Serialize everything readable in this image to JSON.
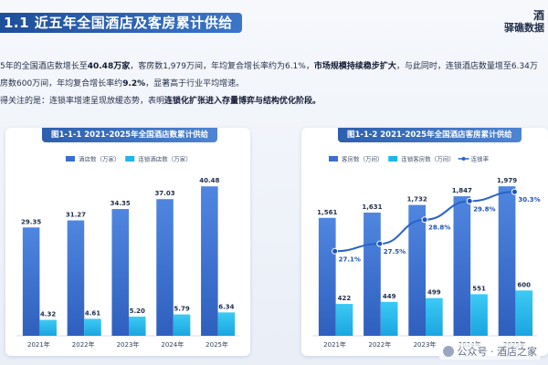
{
  "header": {
    "section_title": "1.1 近五年全国酒店及客房累计供给",
    "brand_line1": "酒",
    "brand_line2": "驿礁数据"
  },
  "body": {
    "line1_a": "5年的全国酒店数增长至",
    "line1_b": "40.48万家",
    "line1_c": "，客房数1,979万间，年均复合增长率约为6.1%，",
    "line1_d": "市场规模持续稳步扩大",
    "line1_e": "，与此同时，连锁酒店数量增至6.34万",
    "line2_a": "房数600万间，年均复合增长率约",
    "line2_b": "9.2%",
    "line2_c": "，显著高于行业平均增速。",
    "line3_a": "得关注的是：连锁率增速呈现放缓态势，表明",
    "line3_b": "连锁化扩张进入存量博弈与结构优化阶段。"
  },
  "chart_data": [
    {
      "type": "bar",
      "title": "图1-1-1 2021-2025年全国酒店数累计供给",
      "categories": [
        "2021年",
        "2022年",
        "2023年",
        "2024年",
        "2025年"
      ],
      "series": [
        {
          "name": "酒店数（万家）",
          "values": [
            29.35,
            31.27,
            34.35,
            37.03,
            40.48
          ],
          "labels": [
            "29.35",
            "31.27",
            "34.35",
            "37.03",
            "40.48"
          ]
        },
        {
          "name": "连锁酒店数（万家）",
          "values": [
            4.32,
            4.61,
            5.2,
            5.79,
            6.34
          ],
          "labels": [
            "4.32",
            "4.61",
            "5.20",
            "5.79",
            "6.34"
          ]
        }
      ],
      "ylim": [
        0,
        44
      ],
      "legend": "top",
      "colors": [
        "#3a6fd0",
        "#1fb6ea"
      ]
    },
    {
      "type": "bar",
      "title": "图1-1-2 2021-2025年全国酒店客房累计供给",
      "categories": [
        "2021年",
        "2022年",
        "2023年",
        "2024年",
        "2025年"
      ],
      "series": [
        {
          "name": "客房数（万间）",
          "values": [
            1561,
            1631,
            1732,
            1847,
            1979
          ],
          "labels": [
            "1,561",
            "1,631",
            "1,732",
            "1,847",
            "1,979"
          ]
        },
        {
          "name": "连锁客房数（万间）",
          "values": [
            422,
            449,
            499,
            551,
            600
          ],
          "labels": [
            "422",
            "449",
            "499",
            "551",
            "600"
          ]
        },
        {
          "name": "连锁率",
          "type": "line",
          "values": [
            27.1,
            27.5,
            28.8,
            29.8,
            30.3
          ],
          "labels": [
            "27.1%",
            "27.5%",
            "28.8%",
            "29.8%",
            "30.3%"
          ]
        }
      ],
      "ylim": [
        0,
        2150
      ],
      "y2lim": [
        25.0,
        31.0
      ],
      "legend": "top",
      "colors": [
        "#3a6fd0",
        "#1fb6ea",
        "#2a63c7"
      ]
    }
  ],
  "watermark": {
    "text": "公众号 · 酒店之家"
  }
}
